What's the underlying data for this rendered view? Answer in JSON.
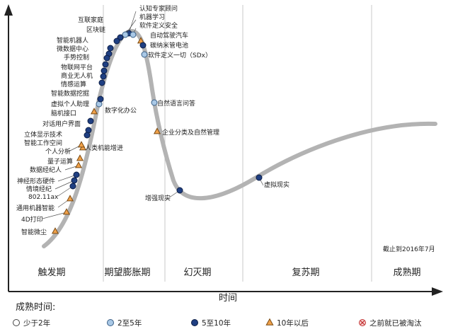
{
  "chart": {
    "asof": "截止到2016年7月",
    "xlabel": "时间",
    "legend_title": "成熟时间:",
    "phases": [
      "触发期",
      "期望膨胀期",
      "幻灭期",
      "复苏期",
      "成熟期"
    ]
  },
  "legend": [
    {
      "key": "lt2",
      "label": "少于2年"
    },
    {
      "key": "y2to5",
      "label": "2至5年"
    },
    {
      "key": "y5to10",
      "label": "5至10年"
    },
    {
      "key": "gt10",
      "label": "10年以后"
    },
    {
      "key": "obsolete",
      "label": "之前就已被淘汰"
    }
  ],
  "marker_styles": {
    "lt2": {
      "shape": "circle",
      "fill": "#ffffff",
      "stroke": "#444444"
    },
    "y2to5": {
      "shape": "circle",
      "fill": "#a9c8e6",
      "stroke": "#3a5f86"
    },
    "y5to10": {
      "shape": "circle",
      "fill": "#1f3f82",
      "stroke": "#0c1d45"
    },
    "gt10": {
      "shape": "triangle",
      "fill": "#f0a14a",
      "stroke": "#7a4a12"
    },
    "obsolete": {
      "shape": "crossed",
      "fill": "#f7d2d2",
      "stroke": "#c33333"
    }
  },
  "colors": {
    "curve": "#b3b3b3",
    "axis": "#222222",
    "divider": "#c8c8c8"
  },
  "technologies": [
    {
      "name": "认知专家顾问",
      "cat": "y5to10"
    },
    {
      "name": "机器学习",
      "cat": "y2to5"
    },
    {
      "name": "软件定义安全",
      "cat": "y2to5"
    },
    {
      "name": "互联家庭",
      "cat": "y5to10"
    },
    {
      "name": "区块链",
      "cat": "y5to10"
    },
    {
      "name": "自动驾驶汽车",
      "cat": "gt10"
    },
    {
      "name": "碳纳米管电池",
      "cat": "y5to10"
    },
    {
      "name": "软件定义一切（SDx）",
      "cat": "y2to5"
    },
    {
      "name": "智能机器人",
      "cat": "y5to10"
    },
    {
      "name": "微数据中心",
      "cat": "y5to10"
    },
    {
      "name": "手势控制",
      "cat": "y5to10"
    },
    {
      "name": "物联网平台",
      "cat": "y5to10"
    },
    {
      "name": "商业无人机",
      "cat": "y5to10"
    },
    {
      "name": "情感运算",
      "cat": "y5to10"
    },
    {
      "name": "智能数据挖掘",
      "cat": "y5to10"
    },
    {
      "name": "虚拟个人助理",
      "cat": "y2to5"
    },
    {
      "name": "脑机接口",
      "cat": "gt10"
    },
    {
      "name": "数字化办公",
      "cat": "y5to10"
    },
    {
      "name": "对话用户界面",
      "cat": "y5to10"
    },
    {
      "name": "立体显示技术",
      "cat": "y5to10"
    },
    {
      "name": "智能工作空间",
      "cat": "y5to10"
    },
    {
      "name": "人类机能增进",
      "cat": "gt10"
    },
    {
      "name": "个人分析",
      "cat": "gt10"
    },
    {
      "name": "量子运算",
      "cat": "gt10"
    },
    {
      "name": "数据经纪人",
      "cat": "gt10"
    },
    {
      "name": "神经形态硬件",
      "cat": "y5to10"
    },
    {
      "name": "情境经纪",
      "cat": "y5to10"
    },
    {
      "name": "802.11ax",
      "cat": "y5to10"
    },
    {
      "name": "通用机器智能",
      "cat": "gt10"
    },
    {
      "name": "4D打印",
      "cat": "gt10"
    },
    {
      "name": "智能微尘",
      "cat": "gt10"
    },
    {
      "name": "自然语言问答",
      "cat": "y2to5"
    },
    {
      "name": "企业分类及自然管理",
      "cat": "gt10"
    },
    {
      "name": "增强现实",
      "cat": "y5to10"
    },
    {
      "name": "虚拟现实",
      "cat": "y5to10"
    }
  ]
}
